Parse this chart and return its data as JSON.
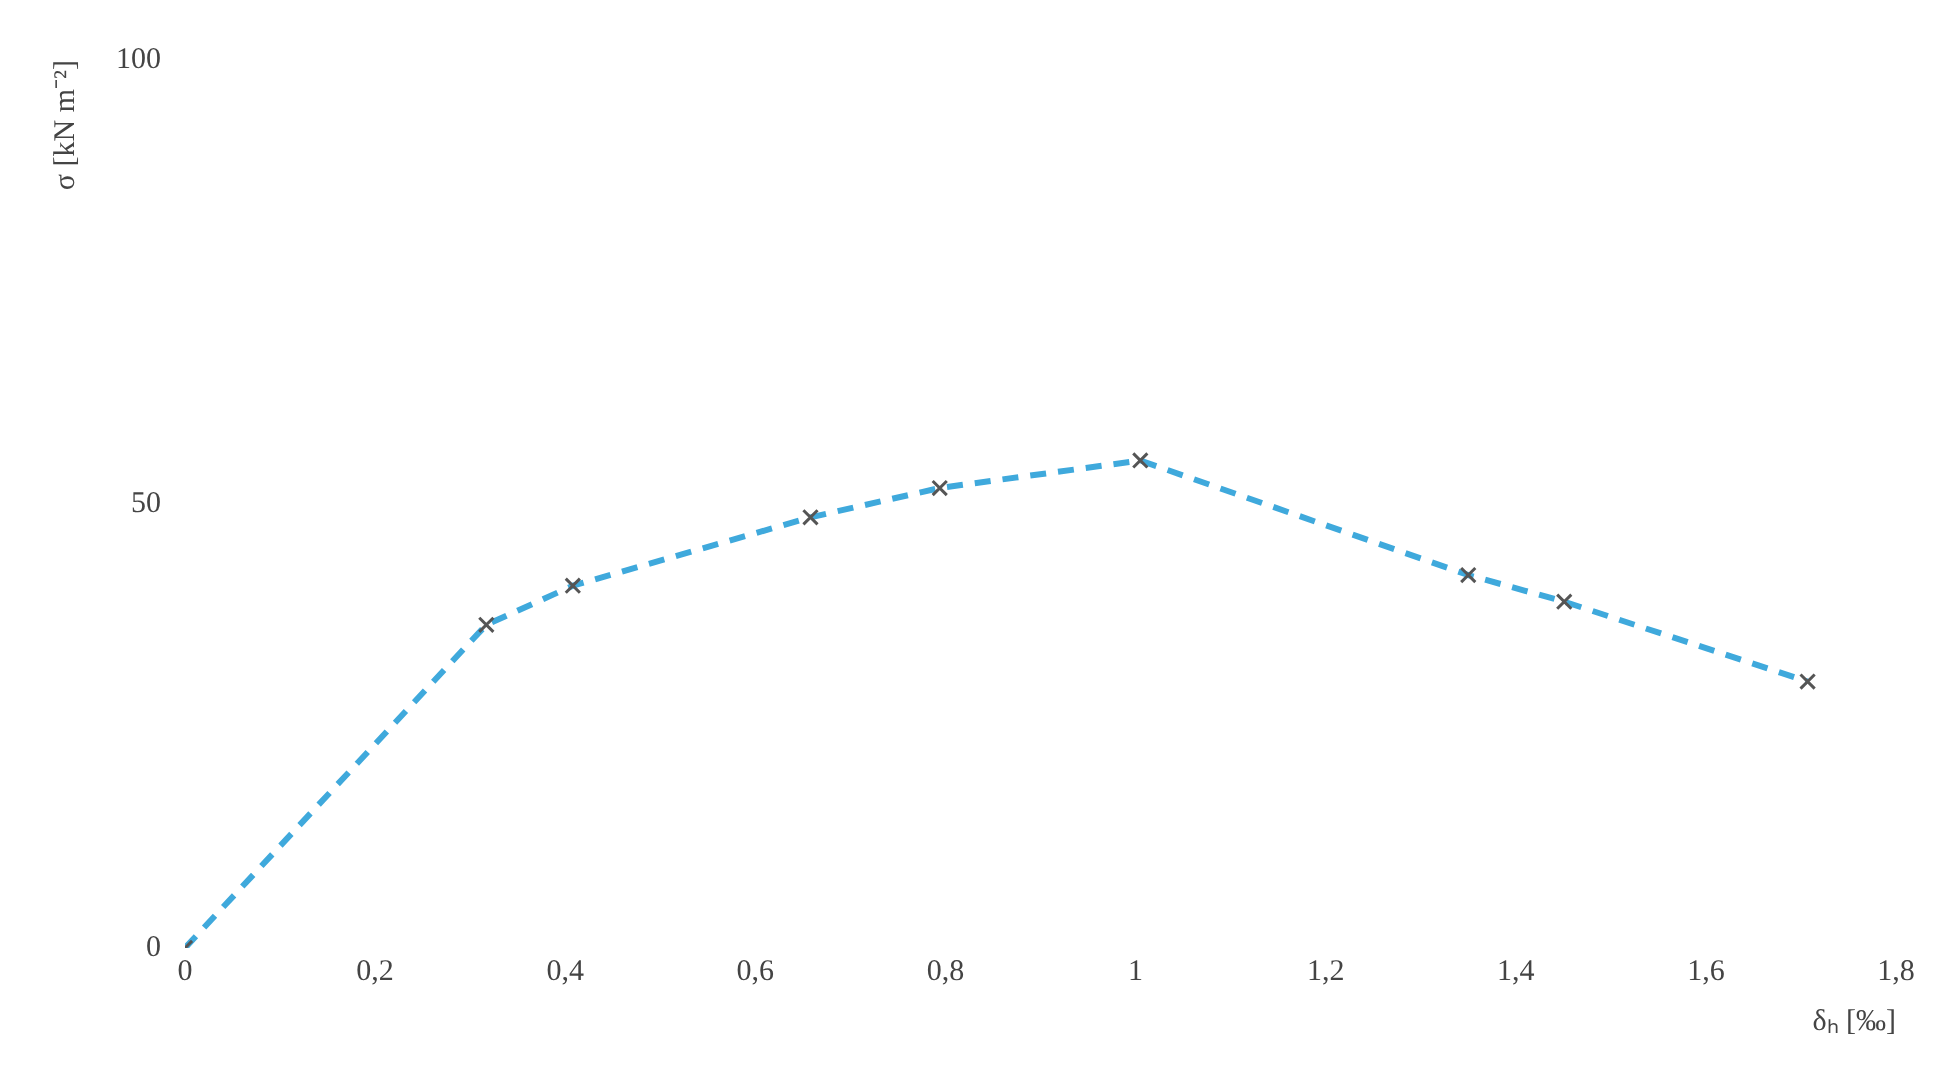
{
  "chart_data": {
    "type": "line",
    "xlabel": "δₕ [‰]",
    "ylabel": "σ [kN m⁻²]",
    "x": [
      0,
      0.317,
      0.408,
      0.658,
      0.794,
      1.005,
      1.35,
      1.451,
      1.707
    ],
    "series": [
      {
        "color": "#3fa9dc",
        "values": [
          0,
          36.4,
          40.8,
          48.5,
          51.8,
          54.9,
          42,
          39,
          30
        ]
      }
    ],
    "xlim": [
      0,
      1.8
    ],
    "xticks": [
      0,
      {
        "value": 0.2,
        "label": "0,2"
      },
      {
        "value": 0.4,
        "label": "0,4"
      },
      {
        "value": 0.6,
        "label": "0,6"
      },
      {
        "value": 0.8,
        "label": "0,8"
      },
      1,
      {
        "value": 1.2,
        "label": "1,2"
      },
      {
        "value": 1.4,
        "label": "1,4"
      },
      {
        "value": 1.6,
        "label": "1,6"
      },
      {
        "value": 1.8,
        "label": "1,8"
      }
    ],
    "ylim": [
      0,
      100
    ],
    "yticks": [
      0,
      50,
      100
    ],
    "grid": false,
    "marker": "cross",
    "line_style": "dashed",
    "legend": false
  }
}
